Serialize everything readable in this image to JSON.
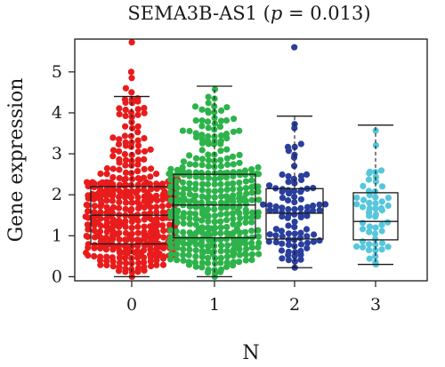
{
  "chart_data": {
    "type": "beeswarm-boxplot",
    "title": {
      "prefix": "SEMA3B-AS1 (",
      "italic": "p",
      "suffix": " = 0.013)"
    },
    "xlabel": "N",
    "ylabel": "Gene expression",
    "ylim": [
      -0.1,
      5.8
    ],
    "yticks": [
      0,
      1,
      2,
      3,
      4,
      5
    ],
    "categories": [
      "0",
      "1",
      "2",
      "3"
    ],
    "colors": [
      "#e81c1c",
      "#2db34a",
      "#2a3f9d",
      "#56c7dc"
    ],
    "groups": [
      {
        "name": "0",
        "n": 420,
        "min": 0.0,
        "q1": 0.8,
        "median": 1.5,
        "q3": 2.2,
        "whisker_high": 4.4,
        "max": 5.7,
        "outliers": [
          5.72,
          5.0,
          4.85,
          4.6,
          4.5
        ],
        "box_label_points": [
          1.75,
          1.45,
          1.0
        ]
      },
      {
        "name": "1",
        "n": 360,
        "min": 0.0,
        "q1": 0.95,
        "median": 1.75,
        "q3": 2.5,
        "whisker_high": 4.65,
        "max": 4.65,
        "outliers": [],
        "box_label_points": []
      },
      {
        "name": "2",
        "n": 95,
        "min": 0.22,
        "q1": 0.92,
        "median": 1.55,
        "q3": 2.15,
        "whisker_high": 3.92,
        "max": 5.6,
        "outliers": [
          5.6
        ],
        "box_label_points": []
      },
      {
        "name": "3",
        "n": 55,
        "min": 0.3,
        "q1": 0.9,
        "median": 1.35,
        "q3": 2.05,
        "whisker_high": 3.7,
        "max": 3.7,
        "outliers": [],
        "box_label_points": []
      }
    ]
  }
}
